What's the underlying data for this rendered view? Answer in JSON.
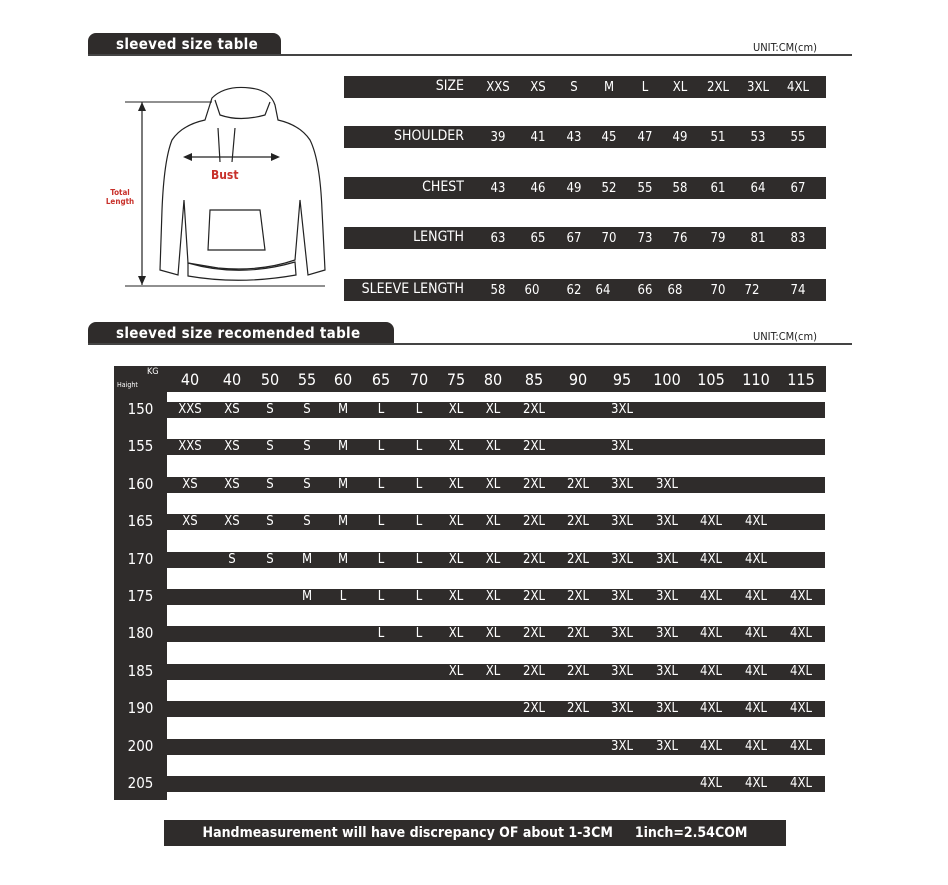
{
  "section1": {
    "title": "sleeved size table",
    "unit": "UNIT:CM(cm)"
  },
  "diagram": {
    "bust": "Bust",
    "total_length_1": "Total",
    "total_length_2": "Length",
    "accent": "#c8312b"
  },
  "size_table": {
    "rows": [
      {
        "label": "SIZE",
        "values": [
          "XXS",
          "XS",
          "S",
          "M",
          "L",
          "XL",
          "2XL",
          "3XL",
          "4XL"
        ]
      },
      {
        "label": "SHOULDER",
        "values": [
          "39",
          "41",
          "43",
          "45",
          "47",
          "49",
          "51",
          "53",
          "55"
        ]
      },
      {
        "label": "CHEST",
        "values": [
          "43",
          "46",
          "49",
          "52",
          "55",
          "58",
          "61",
          "64",
          "67"
        ]
      },
      {
        "label": "LENGTH",
        "values": [
          "63",
          "65",
          "67",
          "70",
          "73",
          "76",
          "79",
          "81",
          "83"
        ]
      },
      {
        "label": "SLEEVE LENGTH",
        "values": [
          "58",
          "60",
          "62",
          "64",
          "66",
          "68",
          "70",
          "72",
          "74"
        ]
      }
    ]
  },
  "section2": {
    "title": "sleeved size recomended table",
    "unit": "UNIT:CM(cm)"
  },
  "rec_table": {
    "kg_label": "KG",
    "height_label": "Haight",
    "weights": [
      "40",
      "40",
      "50",
      "55",
      "60",
      "65",
      "70",
      "75",
      "80",
      "85",
      "90",
      "95",
      "100",
      "105",
      "110",
      "115"
    ],
    "rows": [
      {
        "height": "150",
        "sizes": [
          "XXS",
          "XS",
          "S",
          "S",
          "M",
          "L",
          "L",
          "XL",
          "XL",
          "2XL",
          "",
          "3XL",
          "",
          "",
          "",
          ""
        ]
      },
      {
        "height": "155",
        "sizes": [
          "XXS",
          "XS",
          "S",
          "S",
          "M",
          "L",
          "L",
          "XL",
          "XL",
          "2XL",
          "",
          "3XL",
          "",
          "",
          "",
          ""
        ]
      },
      {
        "height": "160",
        "sizes": [
          "XS",
          "XS",
          "S",
          "S",
          "M",
          "L",
          "L",
          "XL",
          "XL",
          "2XL",
          "2XL",
          "3XL",
          "3XL",
          "",
          "",
          ""
        ]
      },
      {
        "height": "165",
        "sizes": [
          "XS",
          "XS",
          "S",
          "S",
          "M",
          "L",
          "L",
          "XL",
          "XL",
          "2XL",
          "2XL",
          "3XL",
          "3XL",
          "4XL",
          "4XL",
          ""
        ]
      },
      {
        "height": "170",
        "sizes": [
          "",
          "S",
          "S",
          "M",
          "M",
          "L",
          "L",
          "XL",
          "XL",
          "2XL",
          "2XL",
          "3XL",
          "3XL",
          "4XL",
          "4XL",
          ""
        ]
      },
      {
        "height": "175",
        "sizes": [
          "",
          "",
          "",
          "M",
          "L",
          "L",
          "L",
          "XL",
          "XL",
          "2XL",
          "2XL",
          "3XL",
          "3XL",
          "4XL",
          "4XL",
          "4XL"
        ]
      },
      {
        "height": "180",
        "sizes": [
          "",
          "",
          "",
          "",
          "",
          "L",
          "L",
          "XL",
          "XL",
          "2XL",
          "2XL",
          "3XL",
          "3XL",
          "4XL",
          "4XL",
          "4XL"
        ]
      },
      {
        "height": "185",
        "sizes": [
          "",
          "",
          "",
          "",
          "",
          "",
          "",
          "XL",
          "XL",
          "2XL",
          "2XL",
          "3XL",
          "3XL",
          "4XL",
          "4XL",
          "4XL"
        ]
      },
      {
        "height": "190",
        "sizes": [
          "",
          "",
          "",
          "",
          "",
          "",
          "",
          "",
          "",
          "2XL",
          "2XL",
          "3XL",
          "3XL",
          "4XL",
          "4XL",
          "4XL"
        ]
      },
      {
        "height": "200",
        "sizes": [
          "",
          "",
          "",
          "",
          "",
          "",
          "",
          "",
          "",
          "",
          "",
          "3XL",
          "3XL",
          "4XL",
          "4XL",
          "4XL"
        ]
      },
      {
        "height": "205",
        "sizes": [
          "",
          "",
          "",
          "",
          "",
          "",
          "",
          "",
          "",
          "",
          "",
          "",
          "",
          "4XL",
          "4XL",
          "4XL"
        ]
      }
    ]
  },
  "footer": {
    "note": "Handmeasurement will have discrepancy OF about 1-3CM     1inch=2.54COM"
  },
  "colors": {
    "dark": "#2f2c2b",
    "text_light": "#ffffff",
    "accent": "#c8312b"
  }
}
